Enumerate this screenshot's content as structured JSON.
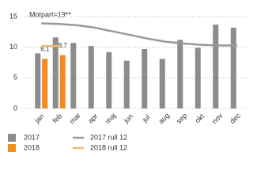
{
  "chart_data": {
    "type": "bar",
    "annotation": "Motpart=19**",
    "categories": [
      "jan",
      "feb",
      "mar",
      "apr",
      "maj",
      "jun",
      "jul",
      "aug",
      "sep",
      "okt",
      "nov",
      "dec"
    ],
    "series": [
      {
        "name": "2017",
        "type": "bar",
        "color": "#8c8c8c",
        "values": [
          9.0,
          11.6,
          10.7,
          10.2,
          9.2,
          7.8,
          9.7,
          8.1,
          11.2,
          9.9,
          13.7,
          13.2
        ]
      },
      {
        "name": "2018",
        "type": "bar",
        "color": "#f28c1e",
        "values": [
          8.1,
          8.7,
          null,
          null,
          null,
          null,
          null,
          null,
          null,
          null,
          null,
          null
        ],
        "value_labels": [
          "8,1",
          "8,7",
          null,
          null,
          null,
          null,
          null,
          null,
          null,
          null,
          null,
          null
        ]
      },
      {
        "name": "2017 rull 12",
        "type": "line",
        "color": "#999999",
        "values": [
          13.9,
          13.8,
          13.6,
          13.2,
          12.6,
          12.0,
          11.4,
          10.9,
          10.6,
          10.4,
          10.3,
          10.3
        ]
      },
      {
        "name": "2018 rull 12",
        "type": "line",
        "color": "#f5b878",
        "values": [
          10.2,
          10.2,
          null,
          null,
          null,
          null,
          null,
          null,
          null,
          null,
          null,
          null
        ]
      }
    ],
    "ylim": [
      0,
      15
    ],
    "yticks": [
      0,
      5,
      10,
      15
    ],
    "grid": true
  }
}
